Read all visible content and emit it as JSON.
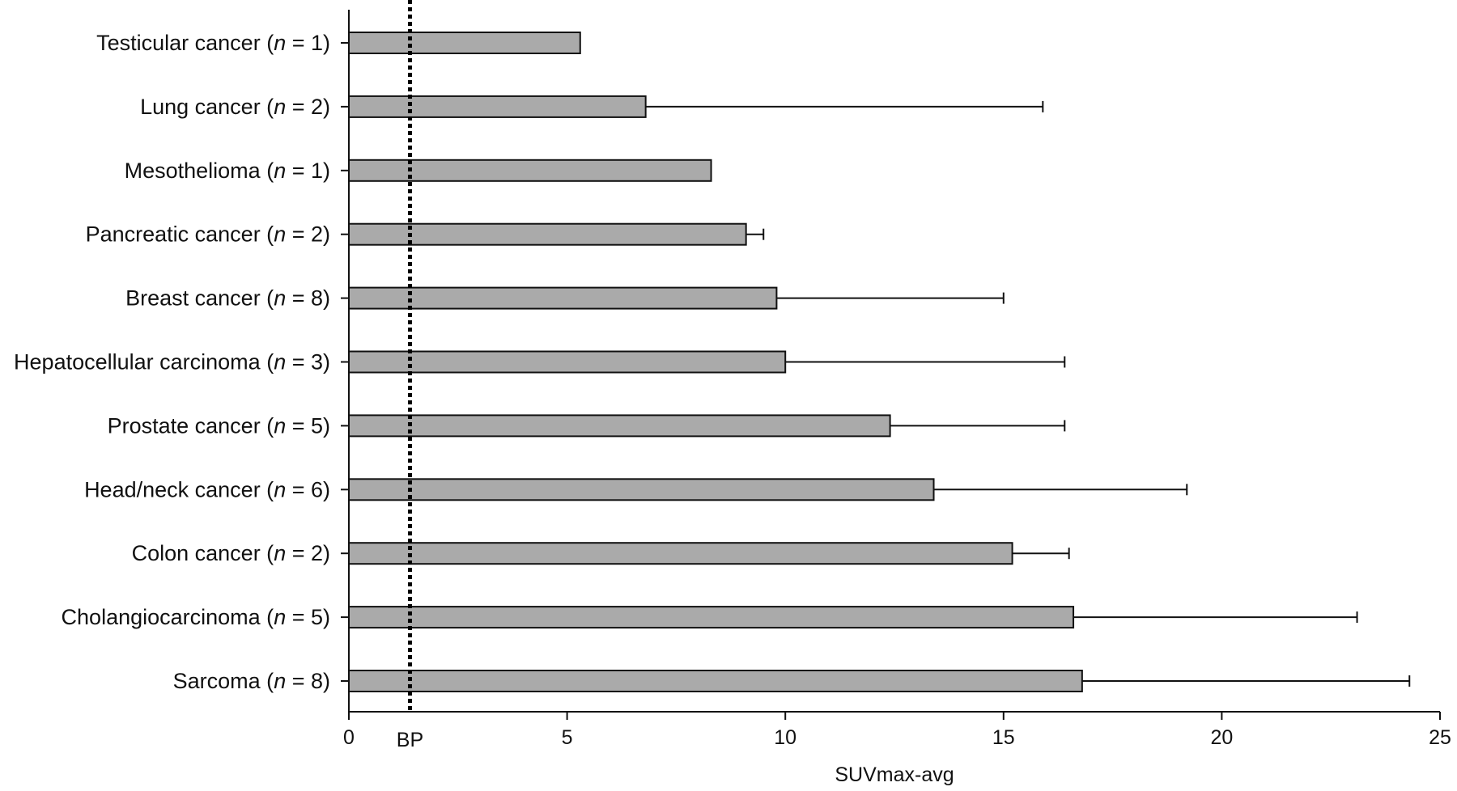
{
  "chart_data": {
    "type": "bar",
    "orientation": "horizontal",
    "title": "",
    "xlabel": "SUVmax-avg",
    "ylabel": "",
    "xlim": [
      0,
      25
    ],
    "xticks": [
      0,
      5,
      10,
      15,
      20,
      25
    ],
    "grid": false,
    "bar_color": "#aaaaaa",
    "categories": [
      {
        "name": "Testicular cancer",
        "n": 1
      },
      {
        "name": "Lung cancer",
        "n": 2
      },
      {
        "name": "Mesothelioma",
        "n": 1
      },
      {
        "name": "Pancreatic cancer",
        "n": 2
      },
      {
        "name": "Breast cancer",
        "n": 8
      },
      {
        "name": "Hepatocellular carcinoma",
        "n": 3
      },
      {
        "name": "Prostate cancer",
        "n": 5
      },
      {
        "name": "Head/neck cancer",
        "n": 6
      },
      {
        "name": "Colon cancer",
        "n": 2
      },
      {
        "name": "Cholangiocarcinoma",
        "n": 5
      },
      {
        "name": "Sarcoma",
        "n": 8
      }
    ],
    "values": [
      5.3,
      6.8,
      8.3,
      9.1,
      9.8,
      10.0,
      12.4,
      13.4,
      15.2,
      16.6,
      16.8
    ],
    "error_upper": [
      null,
      15.9,
      null,
      9.5,
      15.0,
      16.4,
      16.4,
      19.2,
      16.5,
      23.1,
      24.3
    ],
    "reference_line": {
      "label": "BP",
      "value": 1.4,
      "style": "dotted"
    }
  }
}
